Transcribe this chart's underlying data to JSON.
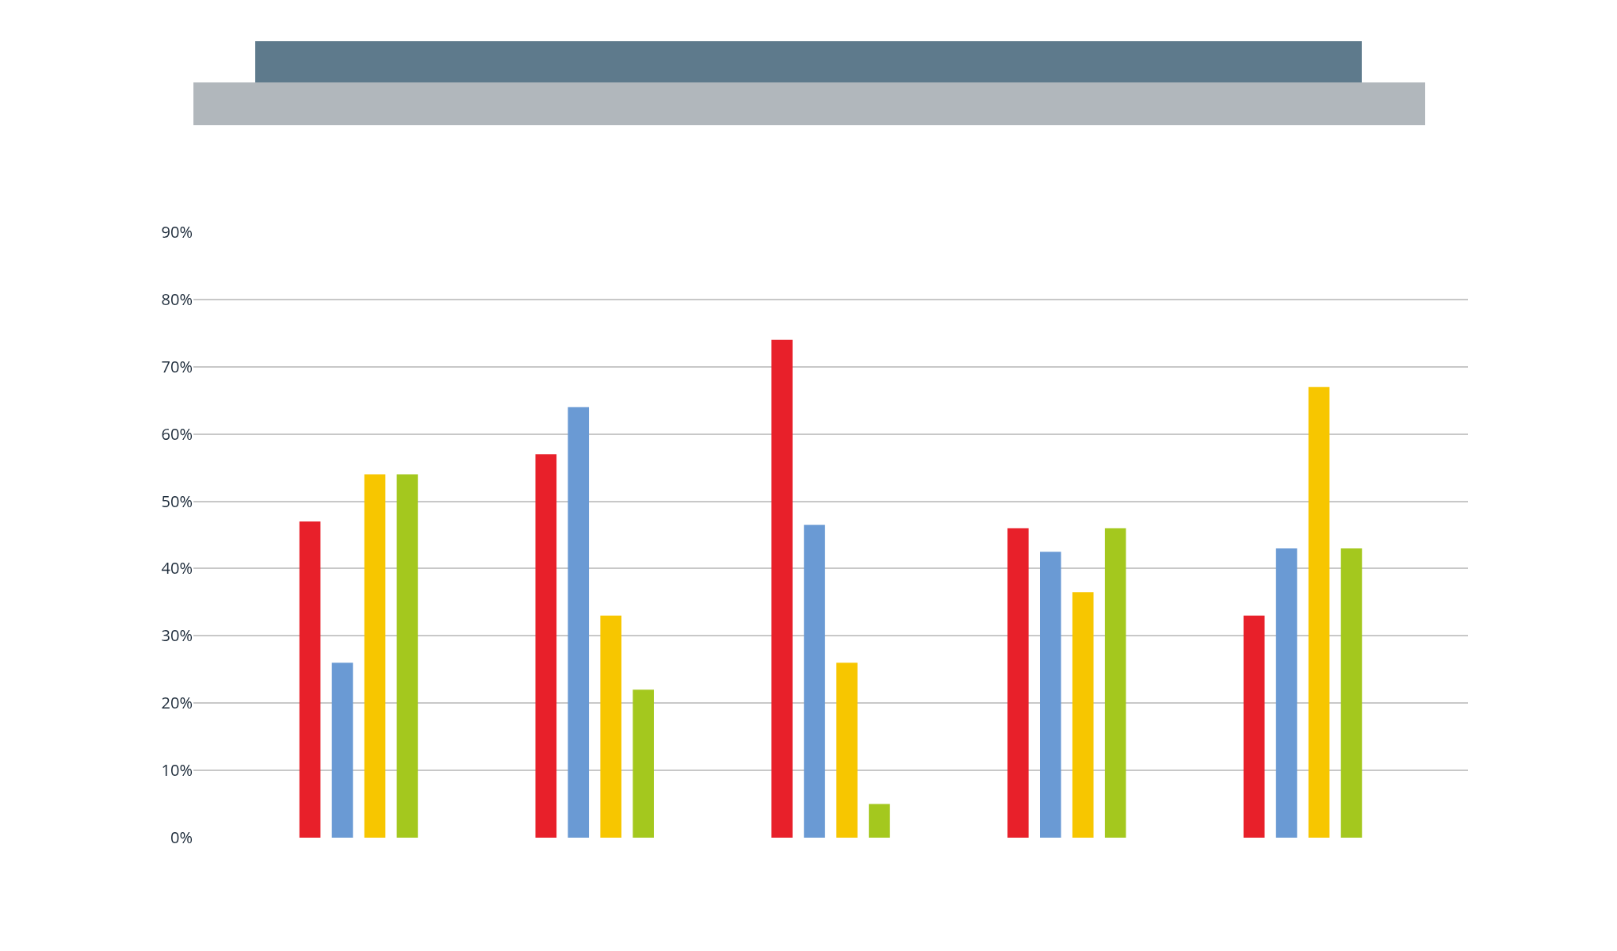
{
  "chart_data": {
    "type": "bar",
    "categories": [
      null,
      null,
      null,
      null,
      null
    ],
    "series": [
      {
        "color": "#e8202a",
        "values": [
          47,
          57,
          74,
          46,
          33
        ]
      },
      {
        "color": "#6a9ad4",
        "values": [
          26,
          64,
          46.5,
          42.5,
          43
        ]
      },
      {
        "color": "#f7c600",
        "values": [
          54,
          33,
          26,
          36.5,
          67
        ]
      },
      {
        "color": "#a4c81e",
        "values": [
          54,
          22,
          5,
          46,
          43
        ]
      }
    ],
    "ylim": [
      0,
      90
    ],
    "yticks": [
      {
        "value": 0,
        "label": "0%"
      },
      {
        "value": 10,
        "label": "10%"
      },
      {
        "value": 20,
        "label": "20%"
      },
      {
        "value": 30,
        "label": "30%"
      },
      {
        "value": 40,
        "label": "40%"
      },
      {
        "value": 50,
        "label": "50%"
      },
      {
        "value": 60,
        "label": "60%"
      },
      {
        "value": 70,
        "label": "70%"
      },
      {
        "value": 80,
        "label": "80%"
      },
      {
        "value": 90,
        "label": "90%"
      }
    ],
    "grid": "y",
    "tick_labels": "y"
  }
}
